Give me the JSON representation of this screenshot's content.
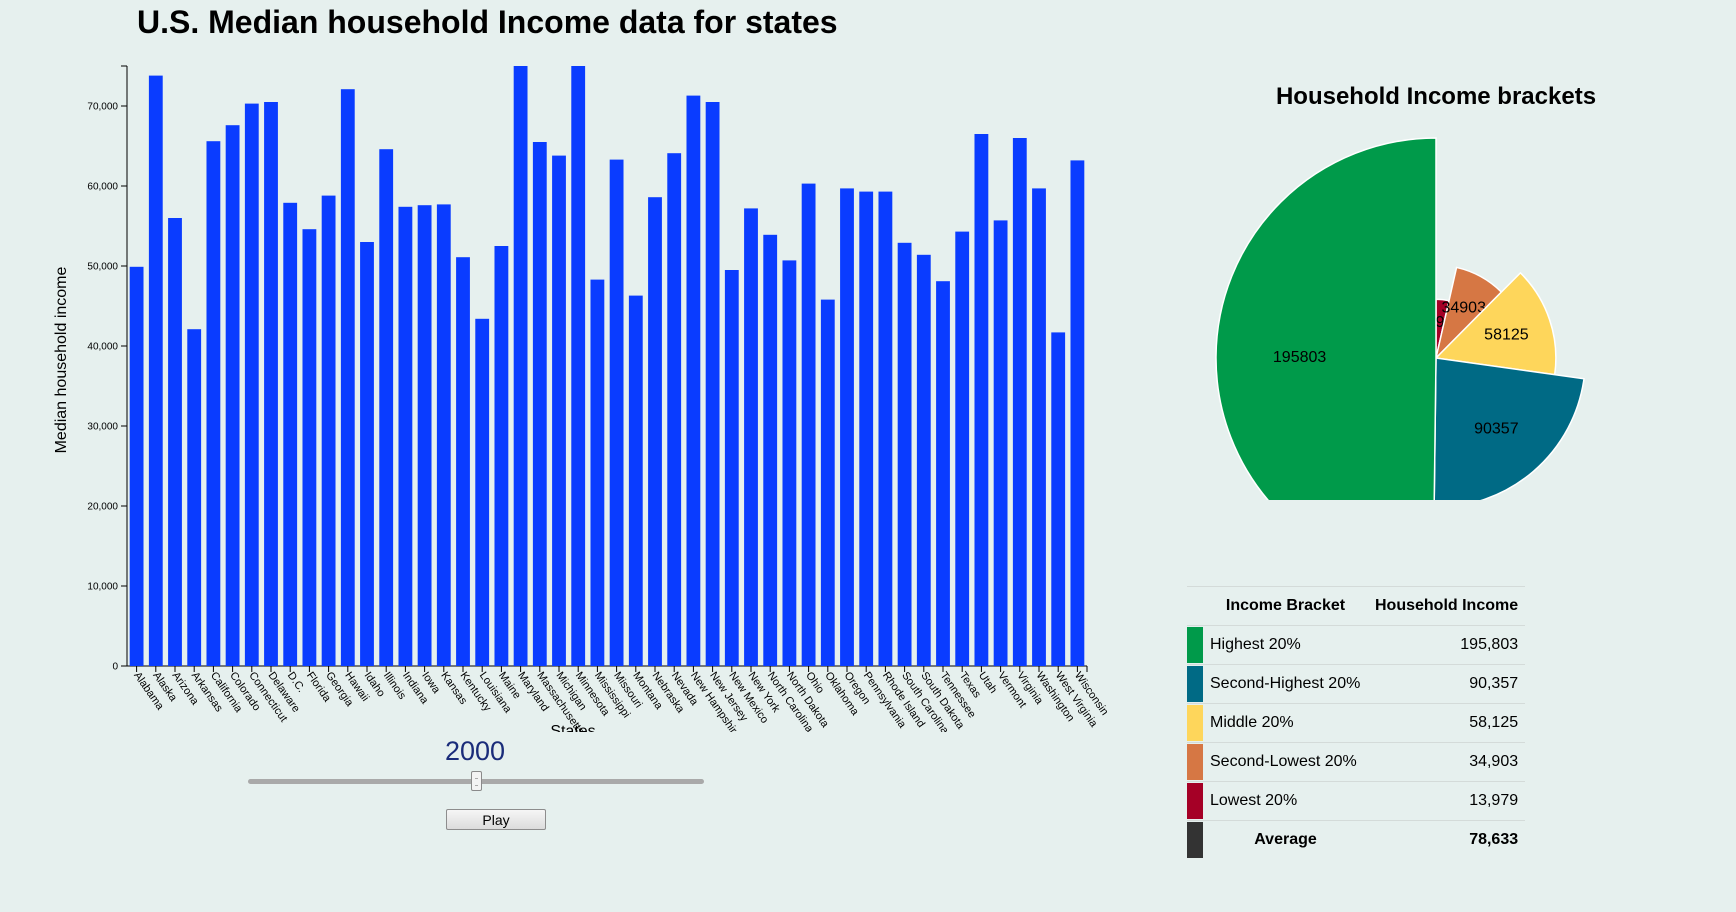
{
  "title": "U.S. Median household Income data for states",
  "chart_data": [
    {
      "type": "bar",
      "xlabel": "States",
      "ylabel": "Median household income",
      "ylim": [
        0,
        75000
      ],
      "yticks": [
        "0",
        "10,000",
        "20,000",
        "30,000",
        "40,000",
        "50,000",
        "60,000",
        "70,000"
      ],
      "color": "#0a3cff",
      "categories": [
        "Alabama",
        "Alaska",
        "Arizona",
        "Arkansas",
        "California",
        "Colorado",
        "Connecticut",
        "Delaware",
        "D.C.",
        "Florida",
        "Georgia",
        "Hawaii",
        "Idaho",
        "Illinois",
        "Indiana",
        "Iowa",
        "Kansas",
        "Kentucky",
        "Louisiana",
        "Maine",
        "Maryland",
        "Massachusetts",
        "Michigan",
        "Minnesota",
        "Mississippi",
        "Missouri",
        "Montana",
        "Nebraska",
        "Nevada",
        "New Hampshire",
        "New Jersey",
        "New Mexico",
        "New York",
        "North Carolina",
        "North Dakota",
        "Ohio",
        "Oklahoma",
        "Oregon",
        "Pennsylvania",
        "Rhode Island",
        "South Carolina",
        "South Dakota",
        "Tennessee",
        "Texas",
        "Utah",
        "Vermont",
        "Virginia",
        "Washington",
        "West Virginia",
        "Wisconsin"
      ],
      "values": [
        49900,
        73800,
        56000,
        42100,
        65600,
        67600,
        70300,
        70500,
        57900,
        54600,
        58800,
        72100,
        53000,
        64600,
        57400,
        57600,
        57700,
        51100,
        43400,
        52500,
        75000,
        65500,
        63800,
        75000,
        48300,
        63300,
        46300,
        58600,
        64100,
        71300,
        70500,
        49500,
        57200,
        53900,
        50700,
        60300,
        45800,
        59700,
        59300,
        59300,
        52900,
        51400,
        48100,
        54300,
        66500,
        55700,
        66000,
        59700,
        41700,
        63200
      ]
    },
    {
      "type": "pie",
      "title": "Household Income brackets",
      "labels": [
        "Lowest 20%",
        "Second-Lowest 20%",
        "Middle 20%",
        "Second-Highest 20%",
        "Highest 20%"
      ],
      "values": [
        13979,
        34903,
        58125,
        90357,
        195803
      ],
      "colors": [
        "#a50026",
        "#d67744",
        "#fed65b",
        "#006a85",
        "#009a4a"
      ]
    }
  ],
  "slider": {
    "year": "2000",
    "fraction": 0.5
  },
  "play_label": "Play",
  "table": {
    "headers": [
      "Income Bracket",
      "Household Income"
    ],
    "rows": [
      {
        "name": "Highest 20%",
        "value": "195,803",
        "color": "#009a4a"
      },
      {
        "name": "Second-Highest 20%",
        "value": "90,357",
        "color": "#006a85"
      },
      {
        "name": "Middle 20%",
        "value": "58,125",
        "color": "#fed65b"
      },
      {
        "name": "Second-Lowest 20%",
        "value": "34,903",
        "color": "#d67744"
      },
      {
        "name": "Lowest 20%",
        "value": "13,979",
        "color": "#a50026"
      }
    ],
    "average": {
      "name": "Average",
      "value": "78,633",
      "color": "#333333"
    }
  }
}
